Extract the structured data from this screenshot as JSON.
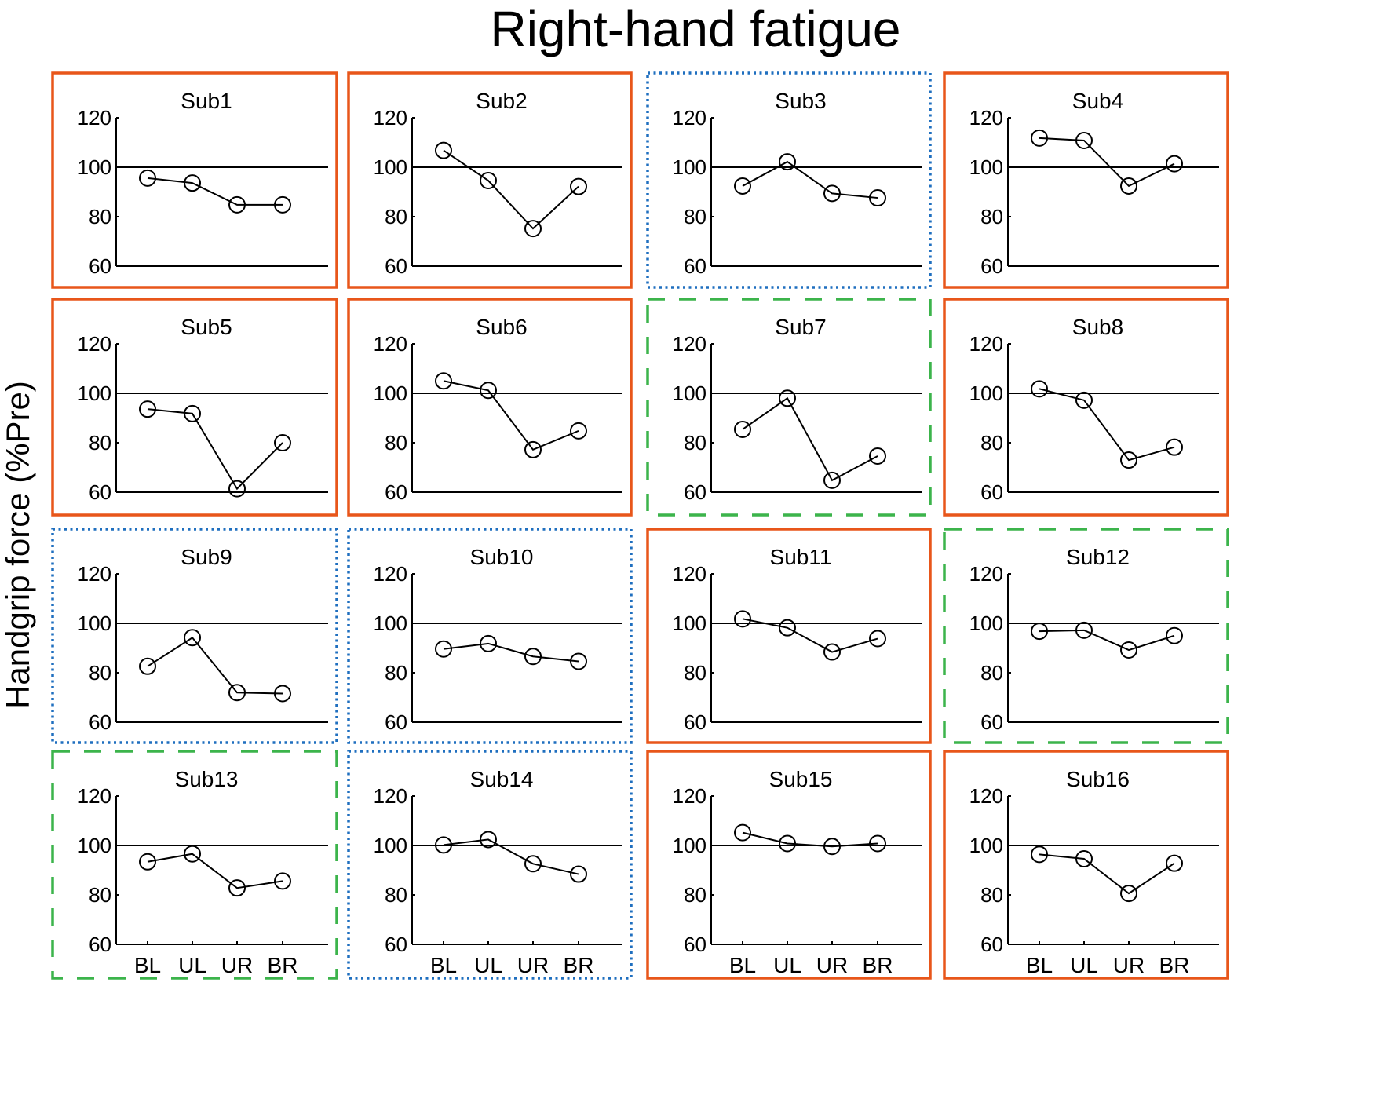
{
  "title": "Right-hand fatigue",
  "ylabel": "Handgrip force (%Pre)",
  "colors": {
    "solid_orange": "#E8561A",
    "dotted_blue": "#1F6FBF",
    "dashed_green": "#3CB44B",
    "line": "#000000"
  },
  "chart_data": {
    "type": "line",
    "title": "Right-hand fatigue",
    "ylabel": "Handgrip force (%Pre)",
    "xlabel": "",
    "categories": [
      "BL",
      "UL",
      "UR",
      "BR"
    ],
    "ylim": [
      60,
      120
    ],
    "yticks": [
      60,
      80,
      100,
      120
    ],
    "reference_line": 100,
    "grid": false,
    "layout": {
      "rows": 4,
      "cols": 4
    },
    "marker": "open-circle",
    "panels": [
      {
        "name": "Sub1",
        "border": "solid",
        "values": [
          95.6,
          93.6,
          84.8,
          84.8
        ]
      },
      {
        "name": "Sub2",
        "border": "solid",
        "values": [
          106.8,
          94.6,
          75.2,
          92.2
        ]
      },
      {
        "name": "Sub3",
        "border": "dotted",
        "values": [
          92.4,
          102.2,
          89.4,
          87.6
        ]
      },
      {
        "name": "Sub4",
        "border": "solid",
        "values": [
          111.8,
          110.8,
          92.4,
          101.4
        ]
      },
      {
        "name": "Sub5",
        "border": "solid",
        "values": [
          93.6,
          91.8,
          61.4,
          80.0
        ]
      },
      {
        "name": "Sub6",
        "border": "solid",
        "values": [
          105.0,
          101.2,
          77.2,
          84.8
        ]
      },
      {
        "name": "Sub7",
        "border": "dashed",
        "values": [
          85.4,
          98.0,
          64.8,
          74.6
        ]
      },
      {
        "name": "Sub8",
        "border": "solid",
        "values": [
          101.8,
          97.2,
          73.0,
          78.2
        ]
      },
      {
        "name": "Sub9",
        "border": "dotted",
        "values": [
          82.6,
          94.2,
          72.0,
          71.6
        ]
      },
      {
        "name": "Sub10",
        "border": "dotted",
        "values": [
          89.6,
          91.8,
          86.6,
          84.6
        ]
      },
      {
        "name": "Sub11",
        "border": "solid",
        "values": [
          101.8,
          98.2,
          88.4,
          93.8
        ]
      },
      {
        "name": "Sub12",
        "border": "dashed",
        "values": [
          96.8,
          97.2,
          89.2,
          95.0
        ]
      },
      {
        "name": "Sub13",
        "border": "dashed",
        "values": [
          93.4,
          96.6,
          82.8,
          85.6
        ]
      },
      {
        "name": "Sub14",
        "border": "dotted",
        "values": [
          100.2,
          102.4,
          92.6,
          88.4
        ]
      },
      {
        "name": "Sub15",
        "border": "solid",
        "values": [
          105.2,
          100.8,
          99.6,
          100.8
        ]
      },
      {
        "name": "Sub16",
        "border": "solid",
        "values": [
          96.4,
          94.6,
          80.6,
          92.8
        ]
      }
    ]
  }
}
